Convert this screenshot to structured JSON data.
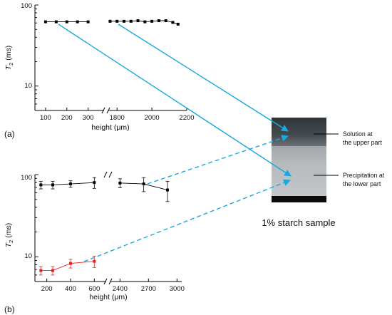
{
  "figure": {
    "panel_a_label": "(a)",
    "panel_b_label": "(b)",
    "sample_caption": "1% starch sample",
    "callout_upper": [
      "Solution at",
      "the upper part"
    ],
    "callout_lower": [
      "Precipitation at",
      "the lower part"
    ],
    "arrow_color": "#1aa9df"
  },
  "chart_data": [
    {
      "id": "a",
      "type": "line",
      "xlabel": "height (μm)",
      "ylabel": "T2 (ms)",
      "y_scale": "log",
      "ylim": [
        5,
        100
      ],
      "y_ticks": [
        10,
        100
      ],
      "broken_x_axis": true,
      "x_segments": [
        {
          "range": [
            50,
            375
          ],
          "ticks": [
            100,
            200,
            300
          ]
        },
        {
          "range": [
            1750,
            2200
          ],
          "ticks": [
            1800,
            2000,
            2200
          ]
        }
      ],
      "series": [
        {
          "color": "#000000",
          "error_bars": false,
          "x": [
            100,
            150,
            200,
            250,
            300
          ],
          "y": [
            62,
            62,
            62,
            62,
            62
          ]
        },
        {
          "color": "#000000",
          "error_bars": false,
          "x": [
            1760,
            1800,
            1840,
            1880,
            1920,
            1960,
            2000,
            2040,
            2080,
            2120,
            2150
          ],
          "y": [
            63,
            63,
            63,
            63,
            64,
            62,
            63,
            64,
            64,
            61,
            58
          ]
        }
      ]
    },
    {
      "id": "b",
      "type": "line",
      "xlabel": "height (μm)",
      "ylabel": "T2 (ms)",
      "y_scale": "log",
      "ylim": [
        5,
        100
      ],
      "y_ticks": [
        10,
        100
      ],
      "broken_x_axis": true,
      "x_segments": [
        {
          "range": [
            100,
            700
          ],
          "ticks": [
            200,
            400,
            600
          ]
        },
        {
          "range": [
            2300,
            3050
          ],
          "ticks": [
            2400,
            2700,
            3000
          ]
        }
      ],
      "series": [
        {
          "color": "#000000",
          "error_bars": true,
          "x": [
            150,
            250,
            400,
            600,
            2400,
            2650,
            2900
          ],
          "y": [
            75,
            75,
            77,
            80,
            79,
            77,
            65
          ],
          "err": [
            8,
            8,
            7,
            12,
            10,
            15,
            18
          ]
        },
        {
          "color": "#e8231f",
          "error_bars": true,
          "x": [
            150,
            250,
            400,
            600
          ],
          "y": [
            6.8,
            6.8,
            8.3,
            8.8
          ],
          "err": [
            0.8,
            0.8,
            1.0,
            1.4
          ]
        }
      ]
    }
  ]
}
